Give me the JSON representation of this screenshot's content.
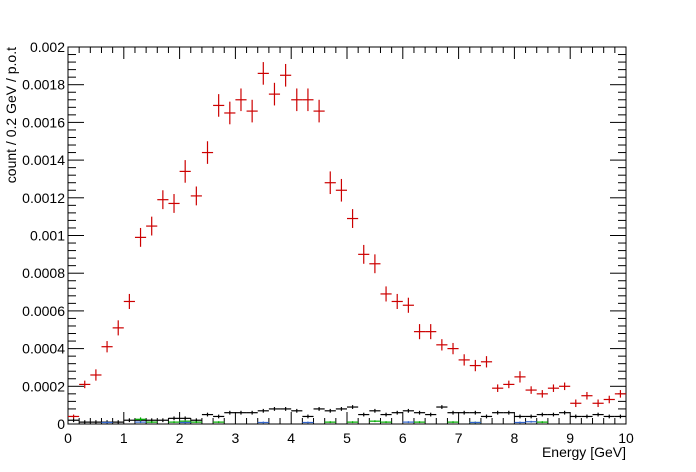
{
  "chart_data": {
    "type": "scatter",
    "xlabel": "Energy [GeV]",
    "ylabel": "count / 0.2 GeV / p.o.t",
    "xlim": [
      0,
      10
    ],
    "ylim": [
      0,
      0.002
    ],
    "x_ticks": [
      0,
      1,
      2,
      3,
      4,
      5,
      6,
      7,
      8,
      9,
      10
    ],
    "y_ticks": [
      0,
      0.0002,
      0.0004,
      0.0006,
      0.0008,
      0.001,
      0.0012,
      0.0014,
      0.0016,
      0.0018,
      0.002
    ],
    "x_tick_labels": [
      "0",
      "1",
      "2",
      "3",
      "4",
      "5",
      "6",
      "7",
      "8",
      "9",
      "10"
    ],
    "y_tick_labels": [
      "0",
      "0.0002",
      "0.0004",
      "0.0006",
      "0.0008",
      "0.001",
      "0.0012",
      "0.0014",
      "0.0016",
      "0.0018",
      "0.002"
    ],
    "bin_width": 0.2,
    "grid": false,
    "series": [
      {
        "color": "#cc0000",
        "x": [
          0.1,
          0.3,
          0.5,
          0.7,
          0.9,
          1.1,
          1.3,
          1.5,
          1.7,
          1.9,
          2.1,
          2.3,
          2.5,
          2.7,
          2.9,
          3.1,
          3.3,
          3.5,
          3.7,
          3.9,
          4.1,
          4.3,
          4.5,
          4.7,
          4.9,
          5.1,
          5.3,
          5.5,
          5.7,
          5.9,
          6.1,
          6.3,
          6.5,
          6.7,
          6.9,
          7.1,
          7.3,
          7.5,
          7.7,
          7.9,
          8.1,
          8.3,
          8.5,
          8.7,
          8.9,
          9.1,
          9.3,
          9.5,
          9.7,
          9.9
        ],
        "y": [
          4e-05,
          0.00021,
          0.00026,
          0.00041,
          0.00051,
          0.00065,
          0.00099,
          0.00105,
          0.00119,
          0.00117,
          0.00134,
          0.00121,
          0.00144,
          0.00169,
          0.00165,
          0.00172,
          0.00166,
          0.00186,
          0.00175,
          0.00185,
          0.00172,
          0.00172,
          0.00166,
          0.00128,
          0.00124,
          0.00109,
          0.0009,
          0.00085,
          0.00069,
          0.00065,
          0.00063,
          0.00049,
          0.00049,
          0.00042,
          0.0004,
          0.00034,
          0.00031,
          0.00033,
          0.00019,
          0.00021,
          0.00025,
          0.00018,
          0.00016,
          0.00019,
          0.0002,
          0.00011,
          0.00015,
          0.00011,
          0.00013,
          0.00016
        ],
        "yerr": [
          1e-05,
          2e-05,
          3e-05,
          3e-05,
          4e-05,
          4e-05,
          5e-05,
          5e-05,
          5e-05,
          5e-05,
          6e-05,
          5e-05,
          6e-05,
          6e-05,
          6e-05,
          6e-05,
          6e-05,
          6e-05,
          6e-05,
          6e-05,
          6e-05,
          6e-05,
          6e-05,
          6e-05,
          6e-05,
          5e-05,
          5e-05,
          5e-05,
          4e-05,
          4e-05,
          4e-05,
          4e-05,
          4e-05,
          3e-05,
          3e-05,
          3e-05,
          3e-05,
          3e-05,
          2e-05,
          2e-05,
          3e-05,
          2e-05,
          2e-05,
          2e-05,
          2e-05,
          2e-05,
          2e-05,
          2e-05,
          2e-05,
          2e-05
        ]
      },
      {
        "color": "#000000",
        "x": [
          0.1,
          0.3,
          0.5,
          0.7,
          0.9,
          1.1,
          1.3,
          1.5,
          1.7,
          1.9,
          2.1,
          2.3,
          2.5,
          2.7,
          2.9,
          3.1,
          3.3,
          3.5,
          3.7,
          3.9,
          4.1,
          4.3,
          4.5,
          4.7,
          4.9,
          5.1,
          5.3,
          5.5,
          5.7,
          5.9,
          6.1,
          6.3,
          6.5,
          6.7,
          6.9,
          7.1,
          7.3,
          7.5,
          7.7,
          7.9,
          8.1,
          8.3,
          8.5,
          8.7,
          8.9,
          9.1,
          9.3,
          9.5,
          9.7,
          9.9
        ],
        "y": [
          2e-05,
          1e-05,
          1e-05,
          1e-05,
          1e-05,
          2e-05,
          2e-05,
          2e-05,
          2e-05,
          3e-05,
          3e-05,
          2e-05,
          5e-05,
          4e-05,
          6e-05,
          6e-05,
          6e-05,
          7e-05,
          8e-05,
          8e-05,
          7e-05,
          4e-05,
          8e-05,
          7e-05,
          8e-05,
          9e-05,
          5e-05,
          7e-05,
          5e-05,
          6e-05,
          7e-05,
          6e-05,
          5e-05,
          9e-05,
          6e-05,
          6e-05,
          6e-05,
          4e-05,
          6e-05,
          6e-05,
          4e-05,
          4e-05,
          5e-05,
          5e-05,
          6e-05,
          4e-05,
          4e-05,
          5e-05,
          4e-05,
          4e-05
        ],
        "yerr": [
          1e-05,
          1e-05,
          1e-05,
          1e-05,
          1e-05,
          1e-05,
          1e-05,
          1e-05,
          1e-05,
          1e-05,
          1e-05,
          1e-05,
          1e-05,
          1e-05,
          1e-05,
          1e-05,
          1e-05,
          1e-05,
          1e-05,
          1e-05,
          1e-05,
          1e-05,
          1e-05,
          1e-05,
          1e-05,
          1e-05,
          1e-05,
          1e-05,
          1e-05,
          1e-05,
          1e-05,
          1e-05,
          1e-05,
          1e-05,
          1e-05,
          1e-05,
          1e-05,
          1e-05,
          1e-05,
          1e-05,
          1e-05,
          1e-05,
          1e-05,
          1e-05,
          1e-05,
          1e-05,
          1e-05,
          1e-05,
          1e-05,
          1e-05
        ]
      },
      {
        "color": "#00aa00",
        "x": [
          1.3,
          1.5,
          1.9,
          2.1,
          2.3,
          2.7,
          4.7,
          5.1,
          5.5,
          5.7,
          6.3,
          6.9,
          7.3,
          8.5
        ],
        "y": [
          2.5e-05,
          1e-05,
          1e-05,
          1.5e-05,
          1e-05,
          1e-05,
          1e-05,
          1e-05,
          1.5e-05,
          1e-05,
          1e-05,
          1e-05,
          8e-06,
          1e-05
        ],
        "yerr": [
          1e-05,
          5e-06,
          5e-06,
          5e-06,
          5e-06,
          5e-06,
          5e-06,
          5e-06,
          5e-06,
          5e-06,
          5e-06,
          5e-06,
          5e-06,
          5e-06
        ]
      },
      {
        "color": "#3366cc",
        "x": [
          0.7,
          1.3,
          2.1,
          3.5,
          4.3,
          6.1,
          7.3,
          8.1,
          8.3
        ],
        "y": [
          8e-06,
          1e-05,
          8e-06,
          8e-06,
          8e-06,
          1e-05,
          8e-06,
          8e-06,
          1.2e-05
        ],
        "yerr": [
          5e-06,
          5e-06,
          5e-06,
          5e-06,
          5e-06,
          5e-06,
          5e-06,
          5e-06,
          5e-06
        ]
      }
    ]
  }
}
